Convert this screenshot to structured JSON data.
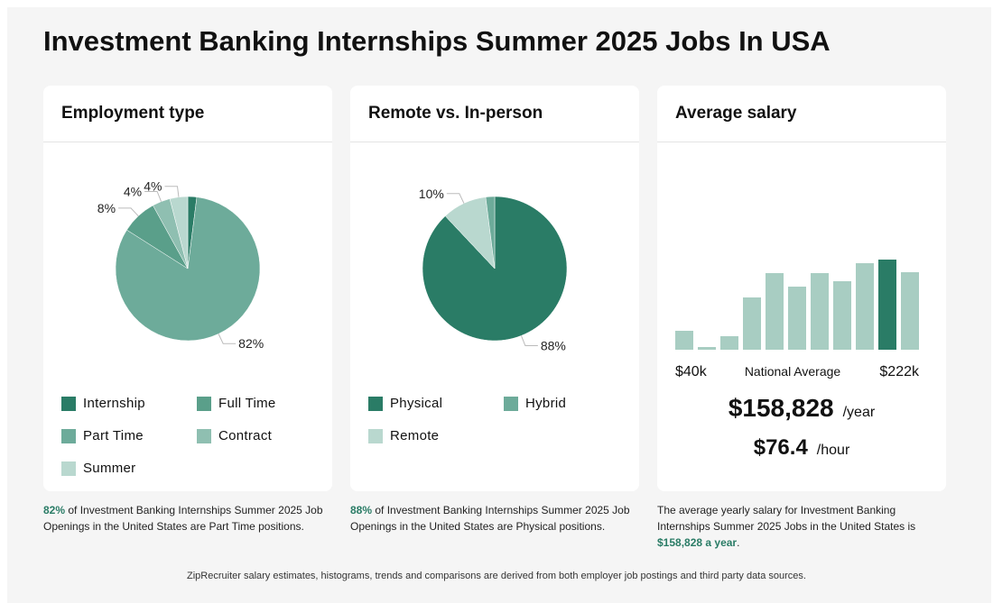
{
  "page": {
    "title": "Investment Banking Internships Summer 2025 Jobs In USA",
    "footnote": "ZipRecruiter salary estimates, histograms, trends and comparisons are derived from both employer job postings and third party data sources."
  },
  "employment": {
    "card_title": "Employment type",
    "caption": {
      "pct": "82%",
      "text": " of Investment Banking Internships Summer 2025 Job Openings in the United States are Part Time positions."
    }
  },
  "remote": {
    "card_title": "Remote vs. In-person",
    "caption": {
      "pct": "88%",
      "text": " of Investment Banking Internships Summer 2025 Job Openings in the United States are Physical positions."
    }
  },
  "salary": {
    "card_title": "Average salary",
    "min_label": "$40k",
    "mid_label": "National Average",
    "max_label": "$222k",
    "yearly": "$158,828",
    "yearly_unit": "/year",
    "hourly": "$76.4",
    "hourly_unit": "/hour",
    "caption": {
      "text": "The average yearly salary for Investment Banking Internships Summer 2025 Jobs in the United States is ",
      "amount": "$158,828 a year",
      "end": "."
    }
  },
  "chart_data": [
    {
      "type": "pie",
      "name": "Employment type",
      "slices": [
        {
          "label": "Internship",
          "value": 2,
          "color": "#2a7c66",
          "pct_label": ""
        },
        {
          "label": "Part Time",
          "value": 82,
          "color": "#6dab9a",
          "pct_label": "82%"
        },
        {
          "label": "Full Time",
          "value": 8,
          "color": "#5a9f8a",
          "pct_label": "8%"
        },
        {
          "label": "Contract",
          "value": 4,
          "color": "#8fbfb1",
          "pct_label": "4%"
        },
        {
          "label": "Summer",
          "value": 4,
          "color": "#b9d8cf",
          "pct_label": "4%"
        }
      ],
      "legend": [
        "Internship",
        "Full Time",
        "Part Time",
        "Contract",
        "Summer"
      ]
    },
    {
      "type": "pie",
      "name": "Remote vs. In-person",
      "slices": [
        {
          "label": "Physical",
          "value": 88,
          "color": "#2a7c66",
          "pct_label": "88%"
        },
        {
          "label": "Remote",
          "value": 10,
          "color": "#b9d8cf",
          "pct_label": "10%"
        },
        {
          "label": "Hybrid",
          "value": 2,
          "color": "#6dab9a",
          "pct_label": ""
        }
      ],
      "legend": [
        "Physical",
        "Hybrid",
        "Remote"
      ]
    },
    {
      "type": "bar",
      "name": "Average salary histogram",
      "values": [
        21,
        3,
        15,
        58,
        85,
        70,
        85,
        76,
        96,
        100,
        86
      ],
      "highlight_index": 9,
      "bar_color": "#a8cdc2",
      "highlight_color": "#2a7c66",
      "ylim": [
        0,
        100
      ]
    }
  ]
}
